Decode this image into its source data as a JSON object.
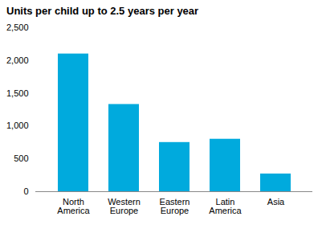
{
  "chart_data": {
    "type": "bar",
    "title": "Units per child up to 2.5 years per year",
    "categories": [
      "North\nAmerica",
      "Western\nEurope",
      "Eastern\nEurope",
      "Latin\nAmerica",
      "Asia"
    ],
    "values": [
      2100,
      1330,
      750,
      800,
      270
    ],
    "color": "#00AADD",
    "ylim": [
      0,
      2500
    ],
    "yticks": [
      0,
      500,
      {
        "value": 1000,
        "label": "1,000"
      },
      {
        "value": 1500,
        "label": "1,500"
      },
      {
        "value": 2000,
        "label": "2,000"
      },
      {
        "value": 2500,
        "label": "2,500"
      }
    ],
    "grid": false
  }
}
